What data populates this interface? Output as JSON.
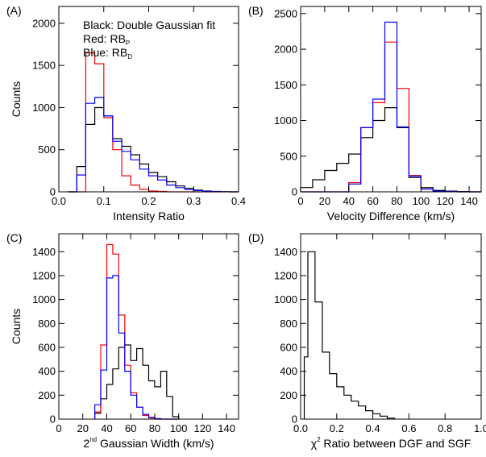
{
  "chart_data": [
    {
      "id": "A",
      "type": "histogram-step",
      "panel_label": "(A)",
      "xlabel": "Intensity Ratio",
      "ylabel": "Counts",
      "xlim": [
        0.0,
        0.4
      ],
      "ylim": [
        0,
        2200
      ],
      "xticks": [
        0.0,
        0.1,
        0.2,
        0.3,
        0.4
      ],
      "xtick_labels": [
        "0.0",
        "0.1",
        "0.2",
        "0.3",
        "0.4"
      ],
      "yticks": [
        0,
        500,
        1000,
        1500,
        2000
      ],
      "ytick_labels": [
        "0",
        "500",
        "1000",
        "1500",
        "2000"
      ],
      "annotations": [
        {
          "base": "Black: Double Gaussian fit"
        },
        {
          "base": "Red: RB",
          "sub": "P"
        },
        {
          "base": "Blue: RB",
          "sub": "D"
        }
      ],
      "bin_edges": [
        0.02,
        0.04,
        0.06,
        0.08,
        0.1,
        0.12,
        0.14,
        0.16,
        0.18,
        0.2,
        0.22,
        0.24,
        0.26,
        0.28,
        0.3,
        0.32,
        0.34,
        0.36,
        0.38,
        0.4
      ],
      "series": [
        {
          "color": "#000000",
          "values": [
            0,
            300,
            800,
            1000,
            900,
            630,
            540,
            440,
            330,
            230,
            180,
            120,
            70,
            40,
            20,
            10,
            5,
            2,
            0
          ]
        },
        {
          "color": "#ff0000",
          "values": [
            0,
            0,
            1650,
            1520,
            880,
            500,
            190,
            80,
            30,
            10,
            5,
            0,
            0,
            0,
            0,
            0,
            0,
            0,
            0
          ]
        },
        {
          "color": "#0000ff",
          "values": [
            0,
            200,
            1050,
            1120,
            900,
            600,
            480,
            380,
            270,
            190,
            140,
            80,
            50,
            30,
            15,
            8,
            4,
            2,
            0
          ]
        }
      ]
    },
    {
      "id": "B",
      "type": "histogram-step",
      "panel_label": "(B)",
      "xlabel": "Velocity Difference (km/s)",
      "ylabel": "",
      "xlim": [
        0,
        150
      ],
      "ylim": [
        0,
        2600
      ],
      "xticks": [
        0,
        20,
        40,
        60,
        80,
        100,
        120,
        140
      ],
      "xtick_labels": [
        "0",
        "20",
        "40",
        "60",
        "80",
        "100",
        "120",
        "140"
      ],
      "yticks": [
        0,
        500,
        1000,
        1500,
        2000,
        2500
      ],
      "ytick_labels": [
        "0",
        "500",
        "1000",
        "1500",
        "2000",
        "2500"
      ],
      "bin_edges": [
        0,
        10,
        20,
        30,
        40,
        50,
        60,
        70,
        80,
        90,
        100,
        110,
        120,
        130,
        140,
        150
      ],
      "series": [
        {
          "color": "#000000",
          "values": [
            60,
            170,
            300,
            400,
            530,
            760,
            1000,
            1180,
            900,
            200,
            60,
            20,
            10,
            5,
            0
          ]
        },
        {
          "color": "#ff0000",
          "values": [
            0,
            0,
            0,
            0,
            130,
            900,
            1250,
            2100,
            1450,
            230,
            40,
            10,
            5,
            0,
            0
          ]
        },
        {
          "color": "#0000ff",
          "values": [
            0,
            0,
            0,
            0,
            110,
            900,
            1300,
            2380,
            910,
            220,
            40,
            10,
            5,
            0,
            0
          ]
        }
      ]
    },
    {
      "id": "C",
      "type": "histogram-step",
      "panel_label": "(C)",
      "xlabel": "2nd Gaussian Width (km/s)",
      "xlabel_parts": {
        "pre": "2",
        "sup": "nd",
        "post": " Gaussian Width (km/s)"
      },
      "ylabel": "Counts",
      "xlim": [
        0,
        150
      ],
      "ylim": [
        0,
        1550
      ],
      "xticks": [
        0,
        20,
        40,
        60,
        80,
        100,
        120,
        140
      ],
      "xtick_labels": [
        "0",
        "20",
        "40",
        "60",
        "80",
        "100",
        "120",
        "140"
      ],
      "yticks": [
        0,
        200,
        400,
        600,
        800,
        1000,
        1200,
        1400
      ],
      "ytick_labels": [
        "0",
        "200",
        "400",
        "600",
        "800",
        "1000",
        "1200",
        "1400"
      ],
      "bin_edges": [
        30,
        35,
        40,
        45,
        50,
        55,
        60,
        65,
        70,
        75,
        80,
        85,
        90,
        95,
        100
      ],
      "series": [
        {
          "color": "#000000",
          "values": [
            50,
            170,
            290,
            420,
            600,
            620,
            490,
            590,
            450,
            320,
            270,
            400,
            190,
            20
          ]
        },
        {
          "color": "#ff0000",
          "values": [
            60,
            620,
            1460,
            1380,
            870,
            450,
            220,
            100,
            30,
            10,
            0,
            0,
            0,
            0
          ]
        },
        {
          "color": "#0000ff",
          "values": [
            120,
            410,
            1180,
            1200,
            720,
            400,
            200,
            100,
            40,
            15,
            5,
            0,
            0,
            0
          ]
        }
      ]
    },
    {
      "id": "D",
      "type": "histogram-step",
      "panel_label": "(D)",
      "xlabel": "χ² Ratio between DGF and SGF",
      "xlabel_parts": {
        "pre": "χ",
        "sup": "2",
        "post": " Ratio between DGF and SGF"
      },
      "ylabel": "",
      "xlim": [
        0.0,
        1.0
      ],
      "ylim": [
        0,
        1550
      ],
      "xticks": [
        0.0,
        0.2,
        0.4,
        0.6,
        0.8,
        1.0
      ],
      "xtick_labels": [
        "0.0",
        "0.2",
        "0.4",
        "0.6",
        "0.8",
        "1.0"
      ],
      "yticks": [
        0,
        200,
        400,
        600,
        800,
        1000,
        1200,
        1400
      ],
      "ytick_labels": [
        "0",
        "200",
        "400",
        "600",
        "800",
        "1000",
        "1200",
        "1400"
      ],
      "bin_edges": [
        0.02,
        0.04,
        0.08,
        0.12,
        0.16,
        0.2,
        0.24,
        0.28,
        0.32,
        0.36,
        0.4,
        0.44,
        0.48,
        0.52
      ],
      "series": [
        {
          "color": "#000000",
          "values": [
            520,
            1400,
            980,
            560,
            380,
            270,
            200,
            150,
            110,
            70,
            45,
            25,
            8
          ]
        }
      ]
    }
  ]
}
